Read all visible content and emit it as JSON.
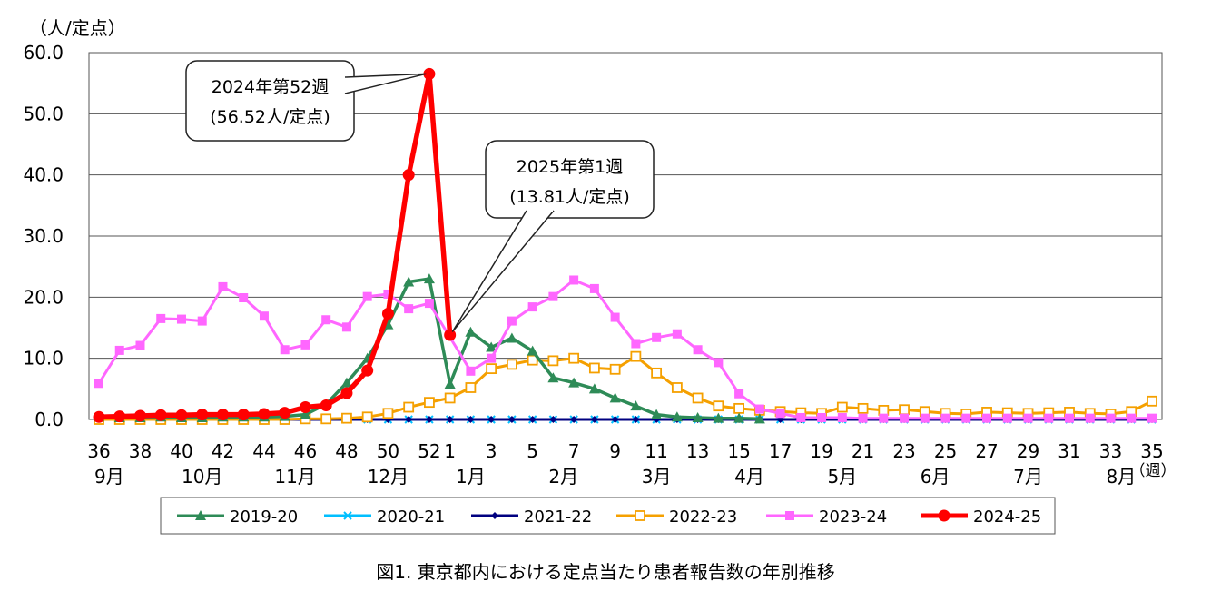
{
  "chart_data": {
    "type": "line",
    "ylabel": "（人/定点）",
    "xunit": "（週）",
    "ylim": [
      0,
      60
    ],
    "yticks": [
      "0.0",
      "10.0",
      "20.0",
      "30.0",
      "40.0",
      "50.0",
      "60.0"
    ],
    "x": [
      "36",
      "37",
      "38",
      "39",
      "40",
      "41",
      "42",
      "43",
      "44",
      "45",
      "46",
      "47",
      "48",
      "49",
      "50",
      "51",
      "52",
      "1",
      "2",
      "3",
      "4",
      "5",
      "6",
      "7",
      "8",
      "9",
      "10",
      "11",
      "12",
      "13",
      "14",
      "15",
      "16",
      "17",
      "18",
      "19",
      "20",
      "21",
      "22",
      "23",
      "24",
      "25",
      "26",
      "27",
      "28",
      "29",
      "30",
      "31",
      "32",
      "33",
      "34",
      "35"
    ],
    "xticks": [
      "36",
      "38",
      "40",
      "42",
      "44",
      "46",
      "48",
      "50",
      "52",
      "1",
      "3",
      "5",
      "7",
      "9",
      "11",
      "13",
      "15",
      "17",
      "19",
      "21",
      "23",
      "25",
      "27",
      "29",
      "31",
      "33",
      "35"
    ],
    "months": [
      {
        "label": "9月",
        "at": 0.5
      },
      {
        "label": "10月",
        "at": 5
      },
      {
        "label": "11月",
        "at": 9.5
      },
      {
        "label": "12月",
        "at": 14
      },
      {
        "label": "1月",
        "at": 18
      },
      {
        "label": "2月",
        "at": 22.5
      },
      {
        "label": "3月",
        "at": 27
      },
      {
        "label": "4月",
        "at": 31.5
      },
      {
        "label": "5月",
        "at": 36
      },
      {
        "label": "6月",
        "at": 40.5
      },
      {
        "label": "7月",
        "at": 45
      },
      {
        "label": "8月",
        "at": 49.5
      }
    ],
    "series": [
      {
        "name": "2019-20",
        "color": "#2e8b57",
        "marker": "triangle",
        "values": [
          0.4,
          0.3,
          0.3,
          0.4,
          0.3,
          0.3,
          0.4,
          0.4,
          0.4,
          0.5,
          0.8,
          2.5,
          6,
          10,
          15.5,
          22.5,
          23,
          5.8,
          14.3,
          11.8,
          13.3,
          11.2,
          6.8,
          6.0,
          5.0,
          3.5,
          2.2,
          0.8,
          0.4,
          0.3,
          0.2,
          0.2,
          0.1,
          null,
          null,
          null,
          null,
          null,
          null,
          null,
          null,
          null,
          null,
          null,
          null,
          null,
          null,
          null,
          null,
          null,
          null,
          null
        ]
      },
      {
        "name": "2020-21",
        "color": "#00bfff",
        "marker": "x",
        "values": [
          0.0,
          0.0,
          0.0,
          0.0,
          0.0,
          0.0,
          0.0,
          0.0,
          0.0,
          0.0,
          0.0,
          0.0,
          0.0,
          0.0,
          0.0,
          0.0,
          0.0,
          0.0,
          0.0,
          0.0,
          0.0,
          0.0,
          0.0,
          0.0,
          0.0,
          0.0,
          0.0,
          0.0,
          0.0,
          0.0,
          0.0,
          0.0,
          0.0,
          0.0,
          0.0,
          0.0,
          0.0,
          0.0,
          0.0,
          0.0,
          0.0,
          0.0,
          0.0,
          0.0,
          0.0,
          0.0,
          0.0,
          0.0,
          0.0,
          0.0,
          0.0,
          0.0
        ]
      },
      {
        "name": "2021-22",
        "color": "#000080",
        "marker": "diamond",
        "values": [
          0.0,
          0.0,
          0.0,
          0.0,
          0.0,
          0.0,
          0.0,
          0.0,
          0.0,
          0.0,
          0.0,
          0.0,
          0.0,
          0.0,
          0.0,
          0.0,
          0.0,
          0.0,
          0.0,
          0.0,
          0.0,
          0.0,
          0.0,
          0.0,
          0.0,
          0.0,
          0.0,
          0.0,
          0.0,
          0.0,
          0.0,
          0.0,
          0.0,
          0.0,
          0.0,
          0.0,
          0.0,
          0.0,
          0.0,
          0.0,
          0.0,
          0.0,
          0.0,
          0.0,
          0.0,
          0.0,
          0.0,
          0.0,
          0.0,
          0.0,
          0.0,
          0.0
        ]
      },
      {
        "name": "2022-23",
        "color": "#f5a000",
        "marker": "square-open",
        "values": [
          0.0,
          0.0,
          0.0,
          0.0,
          0.0,
          0.0,
          0.0,
          0.0,
          0.0,
          0.0,
          0.1,
          0.1,
          0.2,
          0.4,
          1.0,
          2.0,
          2.8,
          3.5,
          5.2,
          8.3,
          9.0,
          9.7,
          9.6,
          10.0,
          8.4,
          8.2,
          10.3,
          7.6,
          5.2,
          3.5,
          2.2,
          1.8,
          1.5,
          1.3,
          1.1,
          1.0,
          2.0,
          1.8,
          1.5,
          1.6,
          1.3,
          1.0,
          0.9,
          1.2,
          1.1,
          1.0,
          1.1,
          1.2,
          1.0,
          0.9,
          1.3,
          3.0
        ]
      },
      {
        "name": "2023-24",
        "color": "#ff66ff",
        "marker": "square",
        "values": [
          5.9,
          11.3,
          12.1,
          16.5,
          16.4,
          16.1,
          21.7,
          19.9,
          16.9,
          11.4,
          12.2,
          16.3,
          15.1,
          20.1,
          20.5,
          18.1,
          19.0,
          null,
          7.9,
          10.0,
          16.1,
          18.4,
          20.1,
          22.8,
          21.4,
          16.7,
          12.4,
          13.4,
          14.0,
          11.4,
          9.3,
          4.2,
          1.7,
          1.0,
          0.3,
          0.3,
          0.3,
          0.2,
          0.2,
          0.2,
          0.2,
          0.2,
          0.2,
          0.2,
          0.2,
          0.2,
          0.2,
          0.2,
          0.2,
          0.2,
          0.2,
          0.2
        ]
      },
      {
        "name": "2024-25",
        "color": "#ff0000",
        "marker": "circle",
        "values": [
          0.4,
          0.5,
          0.6,
          0.7,
          0.7,
          0.8,
          0.8,
          0.8,
          0.9,
          1.1,
          2.0,
          2.3,
          4.3,
          8.0,
          17.3,
          40.0,
          56.52,
          13.81,
          null,
          null,
          null,
          null,
          null,
          null,
          null,
          null,
          null,
          null,
          null,
          null,
          null,
          null,
          null,
          null,
          null,
          null,
          null,
          null,
          null,
          null,
          null,
          null,
          null,
          null,
          null,
          null,
          null,
          null,
          null,
          null,
          null,
          null
        ]
      }
    ],
    "annotations": [
      {
        "line1": "2024年第52週",
        "line2": "(56.52人/定点)",
        "series": "2024-25",
        "index": 16
      },
      {
        "line1": "2025年第1週",
        "line2": "(13.81人/定点)",
        "series": "2024-25",
        "index": 17
      }
    ],
    "legend_position": "bottom",
    "grid": true
  },
  "caption": "図1. 東京都内における定点当たり患者報告数の年別推移"
}
